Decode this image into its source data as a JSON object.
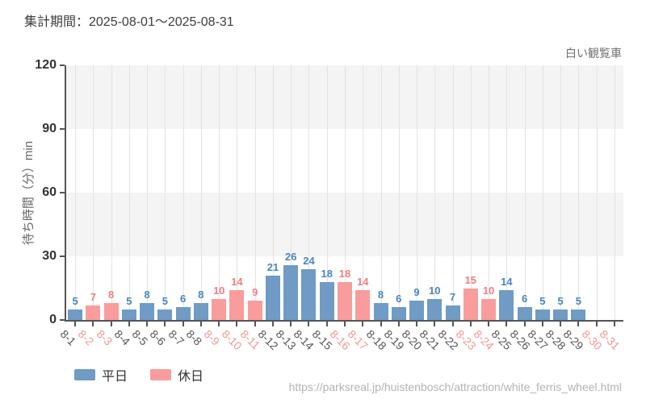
{
  "header": {
    "period_label": "集計期間：2025-08-01～2025-08-31"
  },
  "footer": {
    "source_url": "https://parksreal.jp/huistenbosch/attraction/white_ferris_wheel.html"
  },
  "colors": {
    "weekday_bar": "#6f9bc4",
    "holiday_bar": "#f99c9c",
    "weekday_value_label": "#4a86be",
    "holiday_value_label": "#f08080",
    "x_weekday_label": "#555555",
    "x_holiday_label": "#f59494",
    "band": "#f4f4f4",
    "gridline": "#e3e3e3",
    "axis": "#555555"
  },
  "chart_data": {
    "type": "bar",
    "title": "白い観覧車",
    "ylabel": "待ち時間（分）min",
    "xlabel": "",
    "ylim": [
      0,
      120
    ],
    "yticks": [
      0,
      30,
      60,
      90,
      120
    ],
    "grid": "vertical",
    "legend": [
      "平日",
      "休日"
    ],
    "legend_position": "bottom-left",
    "categories": [
      "8-1",
      "8-2",
      "8-3",
      "8-4",
      "8-5",
      "8-6",
      "8-7",
      "8-8",
      "8-9",
      "8-10",
      "8-11",
      "8-12",
      "8-13",
      "8-14",
      "8-15",
      "8-16",
      "8-17",
      "8-18",
      "8-19",
      "8-20",
      "8-21",
      "8-22",
      "8-23",
      "8-24",
      "8-25",
      "8-26",
      "8-27",
      "8-28",
      "8-29",
      "8-30",
      "8-31"
    ],
    "values": [
      5,
      7,
      8,
      5,
      8,
      5,
      6,
      8,
      10,
      14,
      9,
      21,
      26,
      24,
      18,
      18,
      14,
      8,
      6,
      9,
      10,
      7,
      15,
      10,
      14,
      6,
      5,
      5,
      5,
      null,
      null
    ],
    "day_type": [
      "weekday",
      "holiday",
      "holiday",
      "weekday",
      "weekday",
      "weekday",
      "weekday",
      "weekday",
      "holiday",
      "holiday",
      "holiday",
      "weekday",
      "weekday",
      "weekday",
      "weekday",
      "holiday",
      "holiday",
      "weekday",
      "weekday",
      "weekday",
      "weekday",
      "weekday",
      "holiday",
      "holiday",
      "weekday",
      "weekday",
      "weekday",
      "weekday",
      "weekday",
      "holiday",
      "holiday"
    ]
  }
}
